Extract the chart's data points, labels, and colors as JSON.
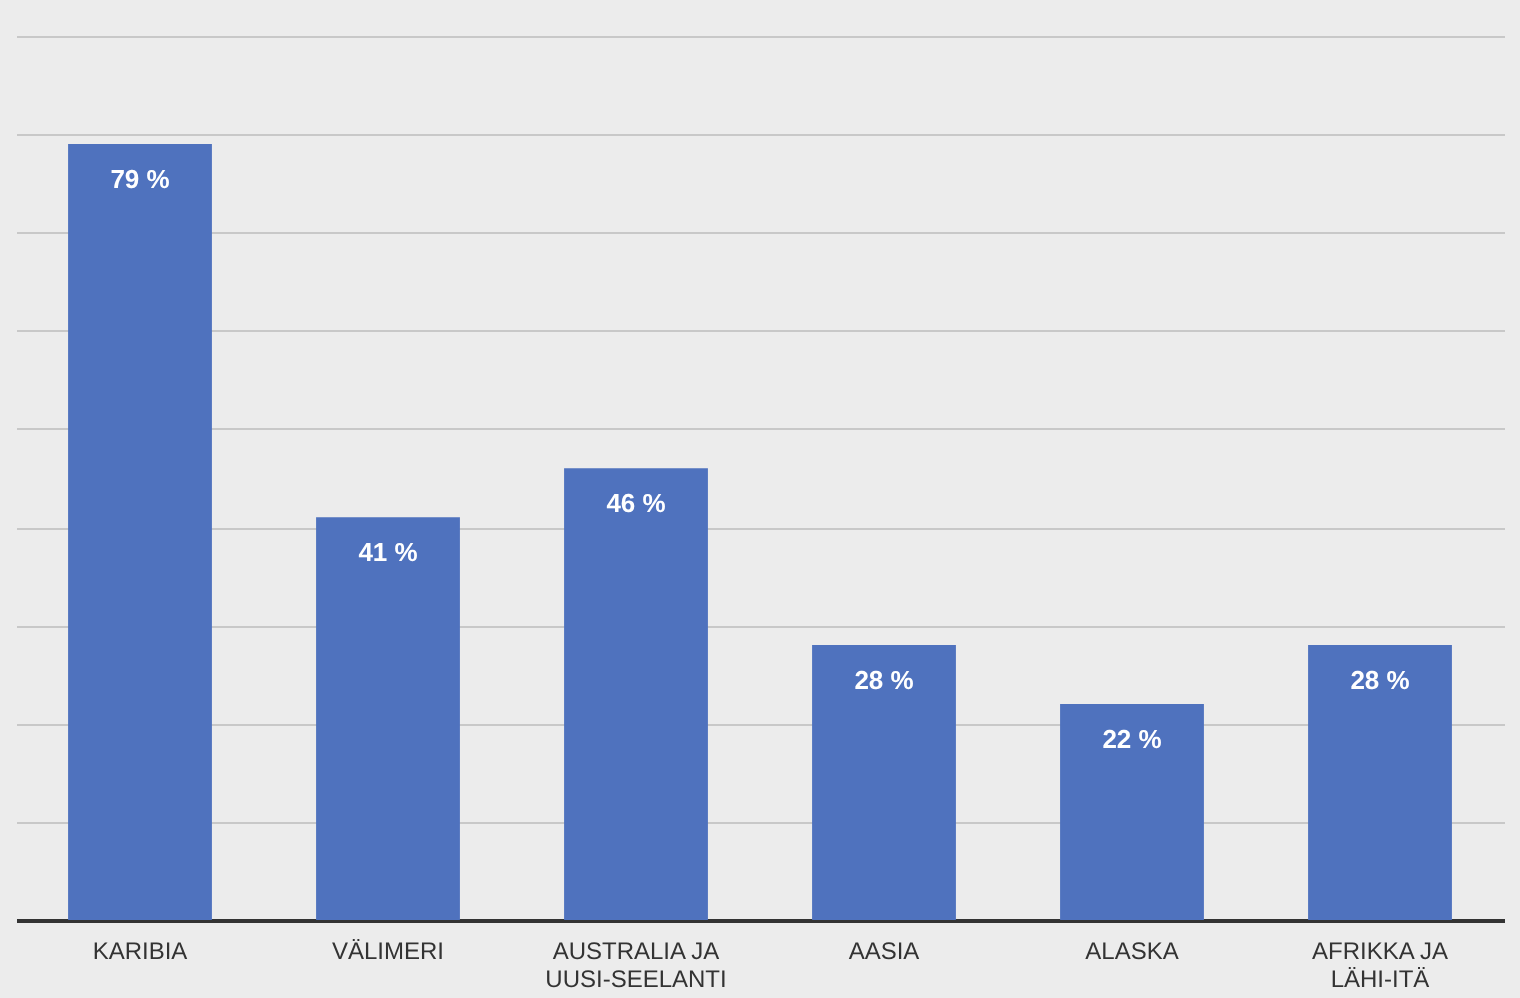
{
  "chart_data": {
    "type": "bar",
    "categories": [
      "KARIBIA",
      "VÄLIMERI",
      "AUSTRALIA JA UUSI-SEELANTI",
      "AASIA",
      "ALASKA",
      "AFRIKKA JA LÄHI-ITÄ"
    ],
    "values": [
      79,
      41,
      46,
      28,
      22,
      28
    ],
    "value_labels": [
      "79 %",
      "41 %",
      "46 %",
      "28 %",
      "22 %",
      "28 %"
    ],
    "color": "#4f72be",
    "ylim": [
      0,
      90
    ],
    "yticks": [
      {
        "value": 0,
        "label": null
      },
      {
        "value": 10,
        "label": null
      },
      {
        "value": 20,
        "label": null
      },
      {
        "value": 30,
        "label": null
      },
      {
        "value": 40,
        "label": null
      },
      {
        "value": 50,
        "label": null
      },
      {
        "value": 60,
        "label": null
      },
      {
        "value": 70,
        "label": null
      },
      {
        "value": 80,
        "label": null
      },
      {
        "value": 90,
        "label": null
      }
    ],
    "grid": "y",
    "tick_labels": "x"
  }
}
